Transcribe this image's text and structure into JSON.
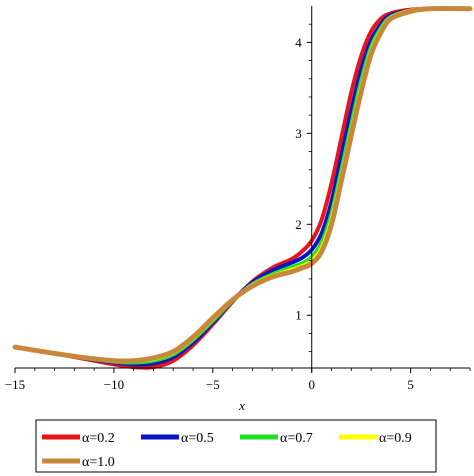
{
  "chart_data": {
    "type": "line",
    "title": "",
    "xlabel": "x",
    "ylabel": "",
    "xlim": [
      -15,
      8
    ],
    "ylim": [
      0.42,
      4.4
    ],
    "x_ticks": [
      -15,
      -10,
      -5,
      0,
      5
    ],
    "y_ticks": [
      1,
      2,
      3,
      4
    ],
    "grid": false,
    "legend_position": "bottom",
    "series": [
      {
        "name": "α=0.2",
        "color": "#e8141c",
        "width": 4,
        "x": [
          -15,
          -13,
          -11,
          -10,
          -9,
          -8,
          -7,
          -6,
          -5,
          -4,
          -3,
          -2,
          -1,
          -0.5,
          0,
          0.5,
          1,
          1.5,
          2,
          2.5,
          3,
          3.5,
          4,
          5,
          6,
          8
        ],
        "y": [
          0.65,
          0.58,
          0.5,
          0.46,
          0.43,
          0.43,
          0.5,
          0.67,
          0.9,
          1.15,
          1.37,
          1.52,
          1.62,
          1.7,
          1.82,
          2.05,
          2.45,
          2.95,
          3.45,
          3.85,
          4.12,
          4.26,
          4.32,
          4.36,
          4.37,
          4.37
        ]
      },
      {
        "name": "α=0.5",
        "color": "#0a14c8",
        "width": 4,
        "x": [
          -15,
          -13,
          -11,
          -10,
          -9,
          -8,
          -7,
          -6,
          -5,
          -4,
          -3,
          -2,
          -1,
          -0.5,
          0,
          0.5,
          1,
          1.5,
          2,
          2.5,
          3,
          3.5,
          4,
          5,
          6,
          8
        ],
        "y": [
          0.65,
          0.58,
          0.51,
          0.48,
          0.46,
          0.47,
          0.54,
          0.7,
          0.92,
          1.16,
          1.36,
          1.49,
          1.58,
          1.63,
          1.72,
          1.9,
          2.25,
          2.75,
          3.25,
          3.7,
          4.02,
          4.2,
          4.3,
          4.35,
          4.37,
          4.37
        ]
      },
      {
        "name": "α=0.7",
        "color": "#22e022",
        "width": 4,
        "x": [
          -15,
          -13,
          -11,
          -10,
          -9,
          -8,
          -7,
          -6,
          -5,
          -4,
          -3,
          -2,
          -1,
          -0.5,
          0,
          0.5,
          1,
          1.5,
          2,
          2.5,
          3,
          3.5,
          4,
          5,
          6,
          8
        ],
        "y": [
          0.65,
          0.58,
          0.52,
          0.49,
          0.48,
          0.5,
          0.57,
          0.73,
          0.94,
          1.16,
          1.34,
          1.45,
          1.53,
          1.57,
          1.64,
          1.8,
          2.12,
          2.6,
          3.1,
          3.58,
          3.95,
          4.16,
          4.28,
          4.35,
          4.37,
          4.37
        ]
      },
      {
        "name": "α=0.9",
        "color": "#ffff00",
        "width": 4,
        "x": [
          -15,
          -13,
          -11,
          -10,
          -9,
          -8,
          -7,
          -6,
          -5,
          -4,
          -3,
          -2,
          -1,
          -0.5,
          0,
          0.5,
          1,
          1.5,
          2,
          2.5,
          3,
          3.5,
          4,
          5,
          6,
          8
        ],
        "y": [
          0.65,
          0.58,
          0.52,
          0.5,
          0.5,
          0.52,
          0.59,
          0.75,
          0.96,
          1.17,
          1.33,
          1.43,
          1.5,
          1.54,
          1.6,
          1.74,
          2.05,
          2.52,
          3.02,
          3.5,
          3.9,
          4.13,
          4.27,
          4.35,
          4.37,
          4.37
        ]
      },
      {
        "name": "α=1.0",
        "color": "#c8883c",
        "width": 5,
        "x": [
          -15,
          -13,
          -11,
          -10,
          -9,
          -8,
          -7,
          -6,
          -5,
          -4,
          -3,
          -2,
          -1,
          -0.5,
          0,
          0.5,
          1,
          1.5,
          2,
          2.5,
          3,
          3.5,
          4,
          5,
          6,
          8
        ],
        "y": [
          0.65,
          0.58,
          0.52,
          0.5,
          0.5,
          0.53,
          0.6,
          0.76,
          0.97,
          1.17,
          1.32,
          1.42,
          1.48,
          1.52,
          1.57,
          1.7,
          2.0,
          2.48,
          2.98,
          3.46,
          3.87,
          4.11,
          4.26,
          4.34,
          4.37,
          4.37
        ]
      }
    ]
  }
}
